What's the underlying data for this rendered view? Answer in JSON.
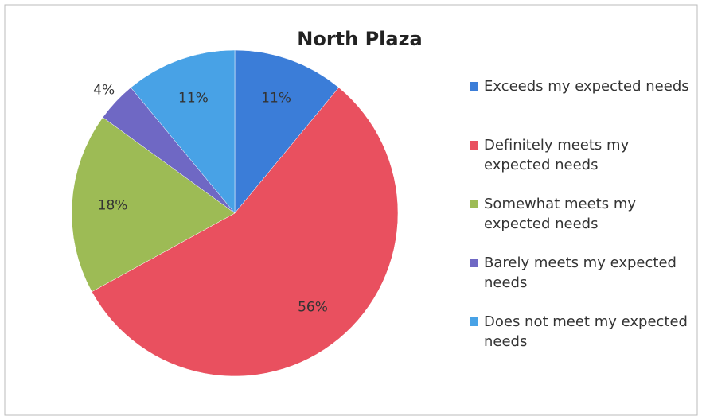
{
  "chart_data": {
    "type": "pie",
    "title": "North Plaza",
    "categories": [
      "Exceeds my expected needs",
      "Definitely meets my expected needs",
      "Somewhat meets my expected needs",
      "Barely meets my expected needs",
      "Does not meet my expected needs"
    ],
    "values": [
      11,
      56,
      18,
      4,
      11
    ],
    "value_labels": [
      "11%",
      "56%",
      "18%",
      "4%",
      "11%"
    ],
    "colors": [
      "#3b7dd8",
      "#e9505f",
      "#9dbb55",
      "#6f68c4",
      "#48a2e6"
    ],
    "legend": "right"
  }
}
